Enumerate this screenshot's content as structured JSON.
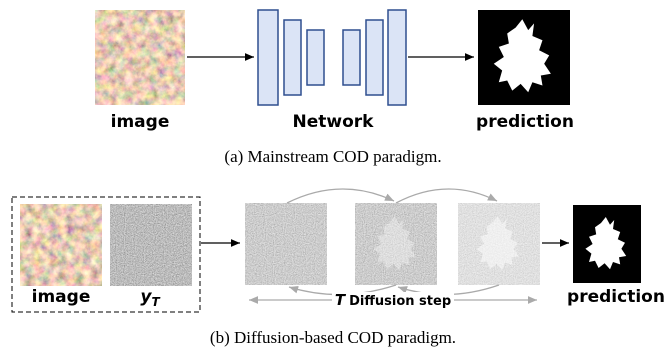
{
  "panel_a": {
    "input_label": "image",
    "network_label": "Network",
    "output_label": "prediction",
    "caption": "(a) Mainstream COD paradigm."
  },
  "panel_b": {
    "input_label": "image",
    "noise_label": {
      "base": "y",
      "subscript": "T"
    },
    "step_label": {
      "variable": "T",
      "text": "Diffusion step"
    },
    "output_label": "prediction",
    "caption": "(b) Diffusion-based COD paradigm."
  }
}
